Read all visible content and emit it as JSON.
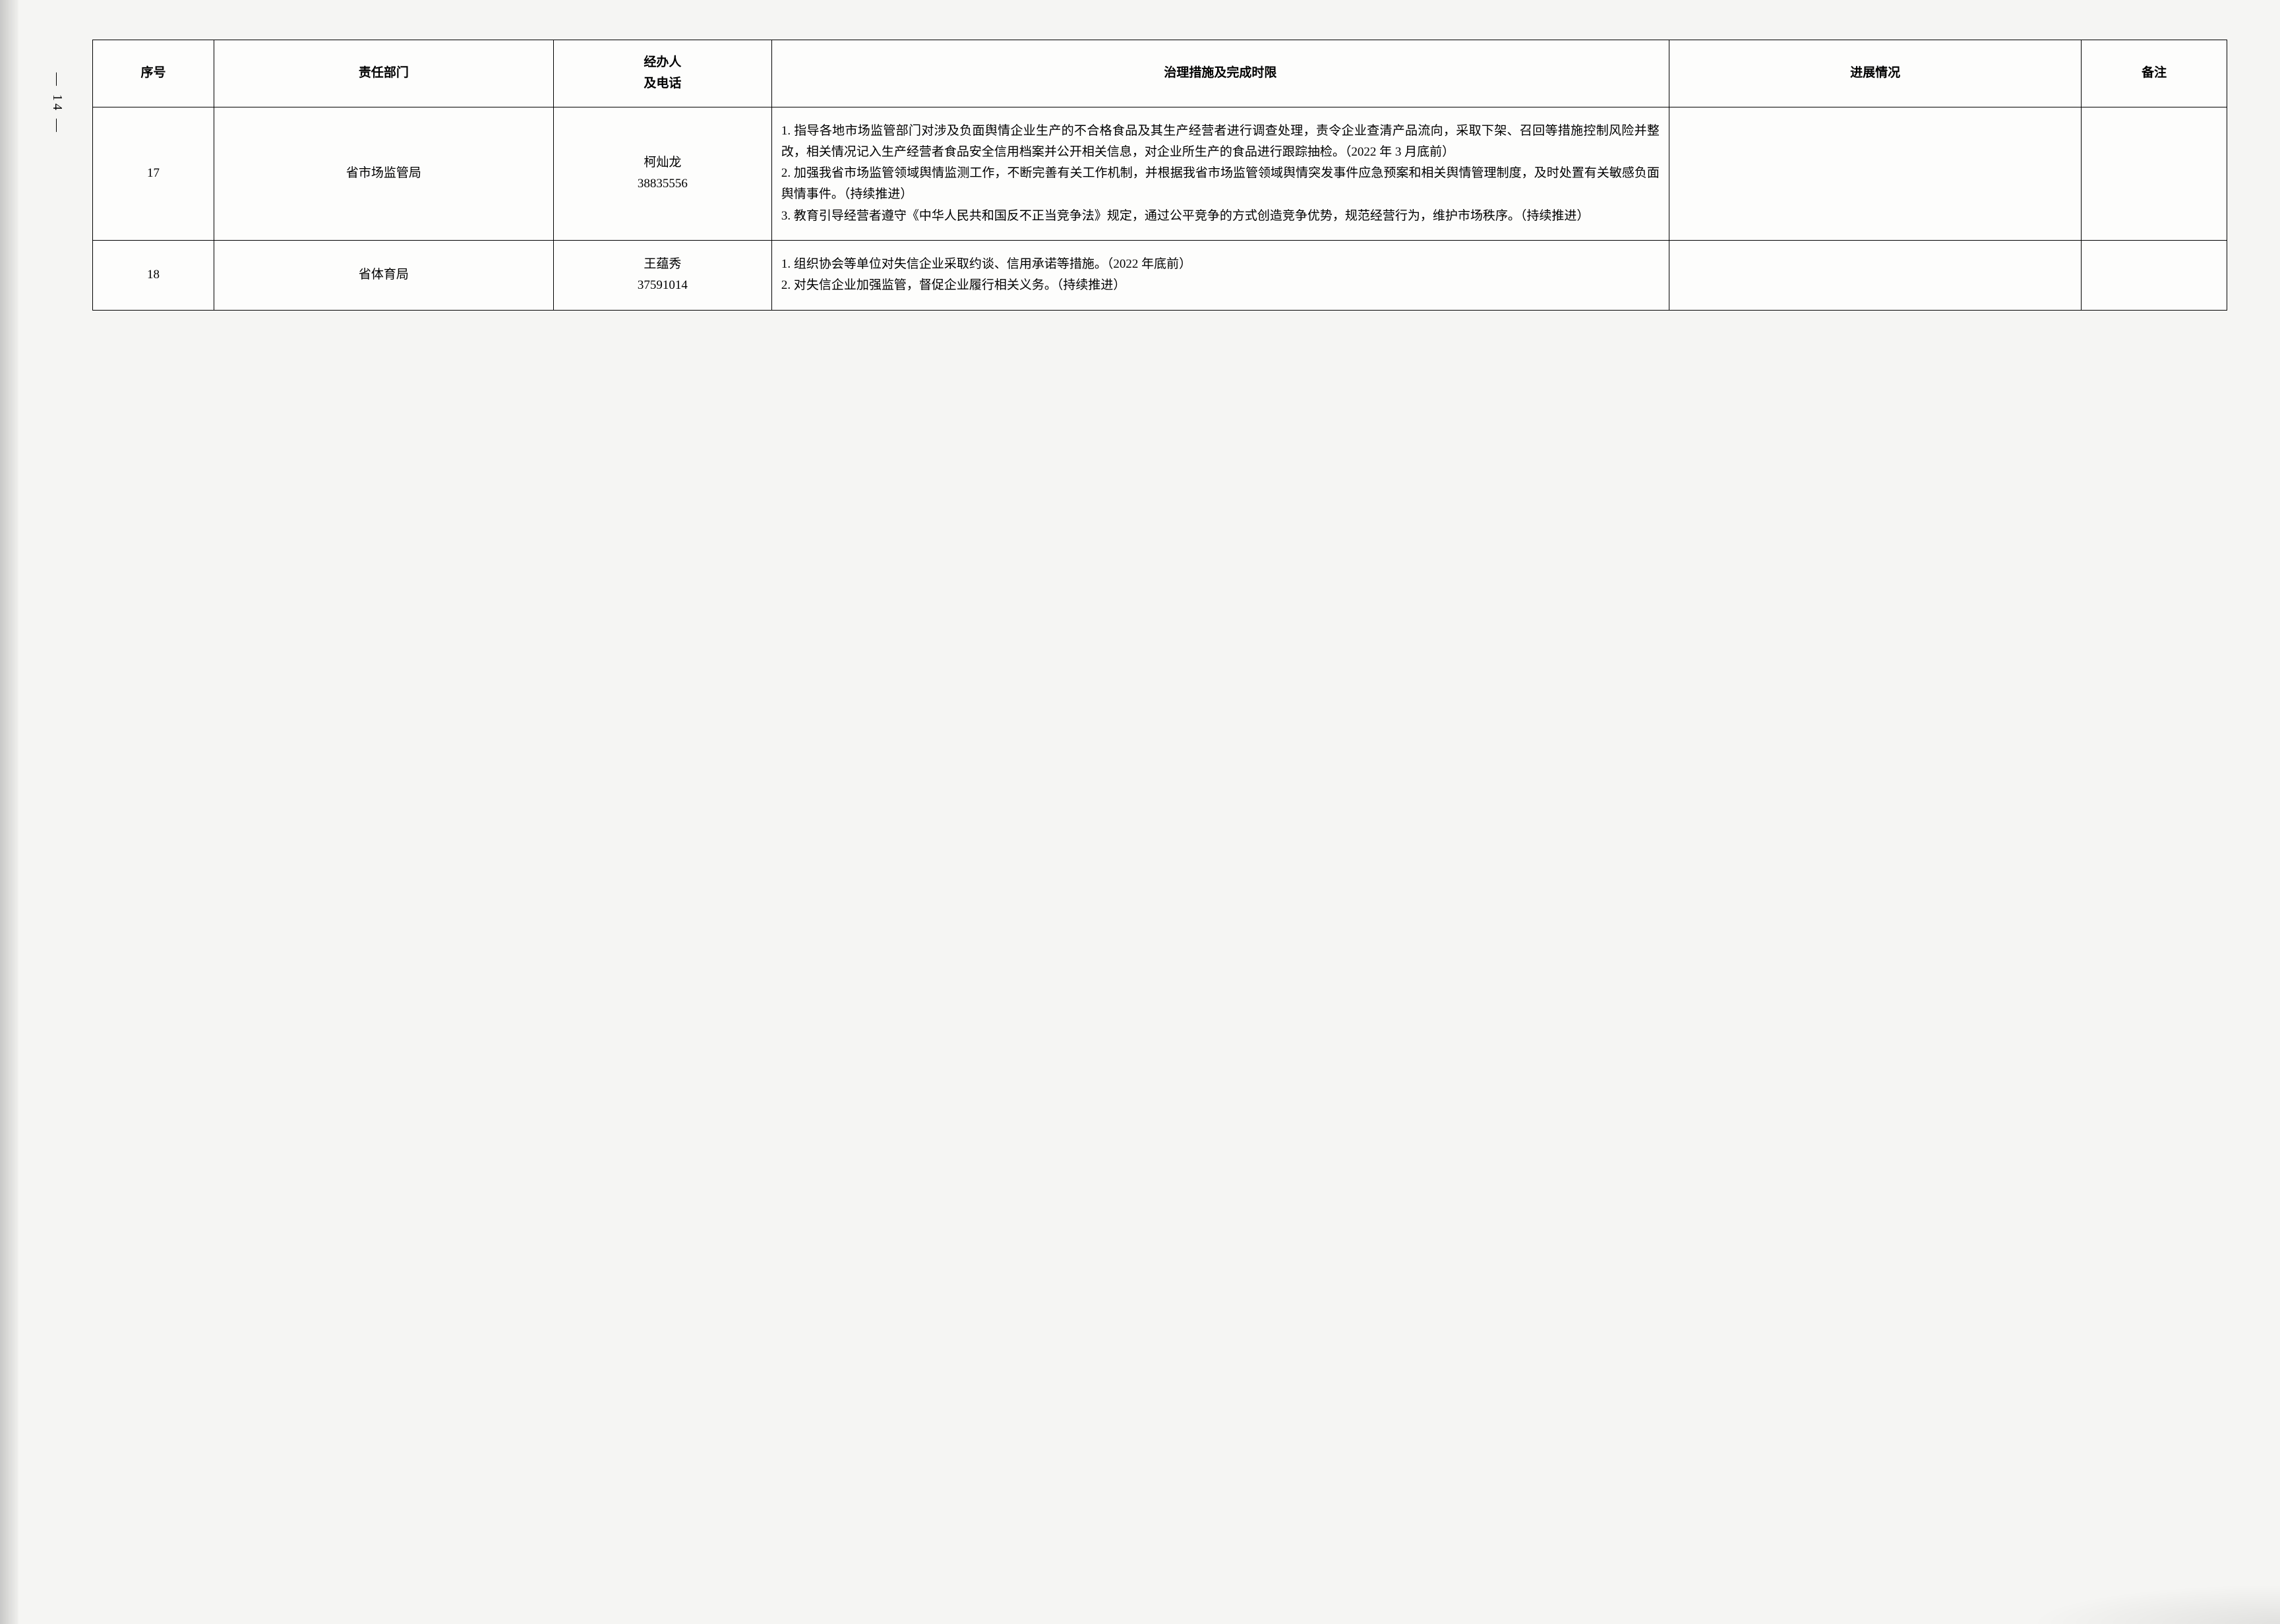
{
  "page_number": "— 14 —",
  "columns": {
    "seq": "序号",
    "dept": "责任部门",
    "contact": "经办人\n及电话",
    "measures": "治理措施及完成时限",
    "progress": "进展情况",
    "remark": "备注"
  },
  "rows": [
    {
      "seq": "17",
      "dept": "省市场监管局",
      "contact": "柯灿龙\n38835556",
      "measures": "1. 指导各地市场监管部门对涉及负面舆情企业生产的不合格食品及其生产经营者进行调查处理，责令企业查清产品流向，采取下架、召回等措施控制风险并整改，相关情况记入生产经营者食品安全信用档案并公开相关信息，对企业所生产的食品进行跟踪抽检。（2022 年 3 月底前）\n2. 加强我省市场监管领域舆情监测工作，不断完善有关工作机制，并根据我省市场监管领域舆情突发事件应急预案和相关舆情管理制度，及时处置有关敏感负面舆情事件。（持续推进）\n3. 教育引导经营者遵守《中华人民共和国反不正当竞争法》规定，通过公平竞争的方式创造竞争优势，规范经营行为，维护市场秩序。（持续推进）",
      "progress": "",
      "remark": ""
    },
    {
      "seq": "18",
      "dept": "省体育局",
      "contact": "王蕴秀\n37591014",
      "measures": "1. 组织协会等单位对失信企业采取约谈、信用承诺等措施。（2022 年底前）\n2. 对失信企业加强监管，督促企业履行相关义务。（持续推进）",
      "progress": "",
      "remark": ""
    }
  ],
  "style": {
    "background_color": "#f5f5f3",
    "border_color": "#000000",
    "font_family": "SimSun",
    "header_fontsize": 19,
    "cell_fontsize": 19,
    "line_height": 1.7,
    "col_widths_pct": [
      5,
      14,
      9,
      37,
      17,
      6
    ]
  }
}
